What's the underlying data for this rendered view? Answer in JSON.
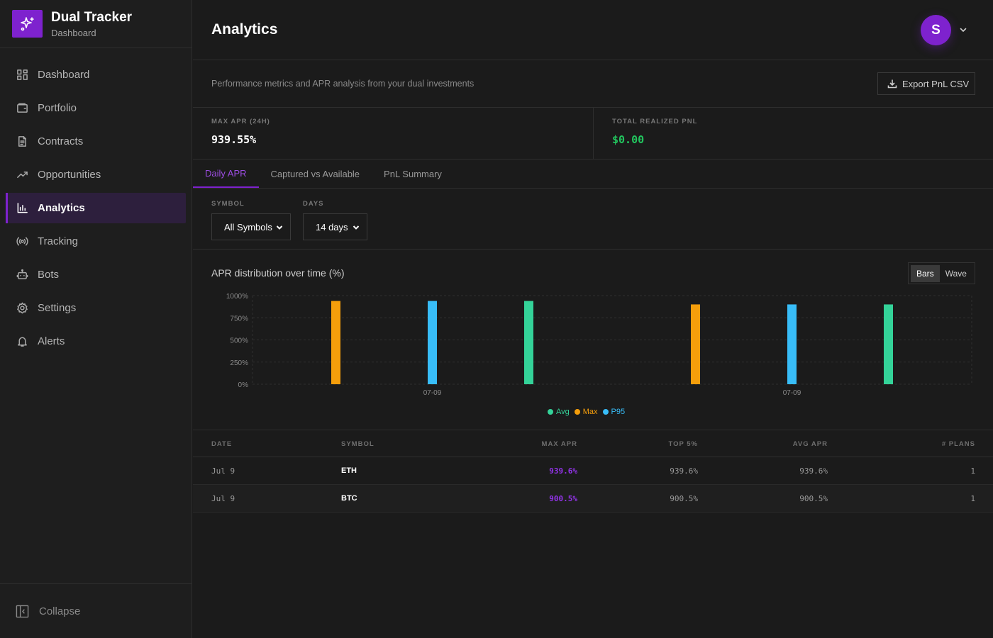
{
  "brand": {
    "title": "Dual Tracker",
    "subtitle": "Dashboard"
  },
  "sidebar": {
    "items": [
      {
        "label": "Dashboard",
        "icon": "grid-icon"
      },
      {
        "label": "Portfolio",
        "icon": "wallet-icon"
      },
      {
        "label": "Contracts",
        "icon": "document-icon"
      },
      {
        "label": "Opportunities",
        "icon": "trend-up-icon"
      },
      {
        "label": "Analytics",
        "icon": "bar-chart-icon",
        "active": true
      },
      {
        "label": "Tracking",
        "icon": "radio-icon"
      },
      {
        "label": "Bots",
        "icon": "bot-icon"
      },
      {
        "label": "Settings",
        "icon": "gear-icon"
      },
      {
        "label": "Alerts",
        "icon": "bell-icon"
      }
    ],
    "collapse_label": "Collapse"
  },
  "header": {
    "title": "Analytics",
    "avatar_initial": "S"
  },
  "description": "Performance metrics and APR analysis from your dual investments",
  "export_label": "Export PnL CSV",
  "stats": [
    {
      "label": "MAX APR (24H)",
      "value": "939.55%"
    },
    {
      "label": "TOTAL REALIZED PNL",
      "value": "$0.00"
    }
  ],
  "tabs": [
    {
      "label": "Daily APR",
      "active": true
    },
    {
      "label": "Captured vs Available"
    },
    {
      "label": "PnL Summary"
    }
  ],
  "filters": {
    "symbol": {
      "label": "SYMBOL",
      "value": "All Symbols"
    },
    "days": {
      "label": "DAYS",
      "value": "14 days"
    }
  },
  "chart": {
    "title": "APR distribution over time (%)",
    "toggle": {
      "bars": "Bars",
      "wave": "Wave",
      "active": "Bars"
    }
  },
  "chart_data": {
    "type": "bar",
    "categories": [
      "07-09",
      "07-09"
    ],
    "series": [
      {
        "name": "Max",
        "color": "#f59e0b",
        "values": [
          939.6,
          900.5
        ]
      },
      {
        "name": "P95",
        "color": "#38bdf8",
        "values": [
          939.6,
          900.5
        ]
      },
      {
        "name": "Avg",
        "color": "#34d399",
        "values": [
          939.6,
          900.5
        ]
      }
    ],
    "legend": [
      {
        "name": "Avg",
        "color": "#34d399"
      },
      {
        "name": "Max",
        "color": "#f59e0b"
      },
      {
        "name": "P95",
        "color": "#38bdf8"
      }
    ],
    "yticks": [
      "1000%",
      "750%",
      "500%",
      "250%",
      "0%"
    ],
    "ytick_values": [
      1000,
      750,
      500,
      250,
      0
    ],
    "ylim": [
      0,
      1000
    ],
    "grid": true,
    "legend_position": "bottom-center"
  },
  "table": {
    "headers": [
      "DATE",
      "SYMBOL",
      "MAX APR",
      "TOP 5%",
      "AVG APR",
      "# PLANS"
    ],
    "rows": [
      {
        "date": "Jul 9",
        "symbol": "ETH",
        "max_apr": "939.6%",
        "top5": "939.6%",
        "avg_apr": "939.6%",
        "plans": "1"
      },
      {
        "date": "Jul 9",
        "symbol": "BTC",
        "max_apr": "900.5%",
        "top5": "900.5%",
        "avg_apr": "900.5%",
        "plans": "1"
      }
    ]
  },
  "colors": {
    "accent": "#7e22ce",
    "positive": "#22c55e"
  }
}
